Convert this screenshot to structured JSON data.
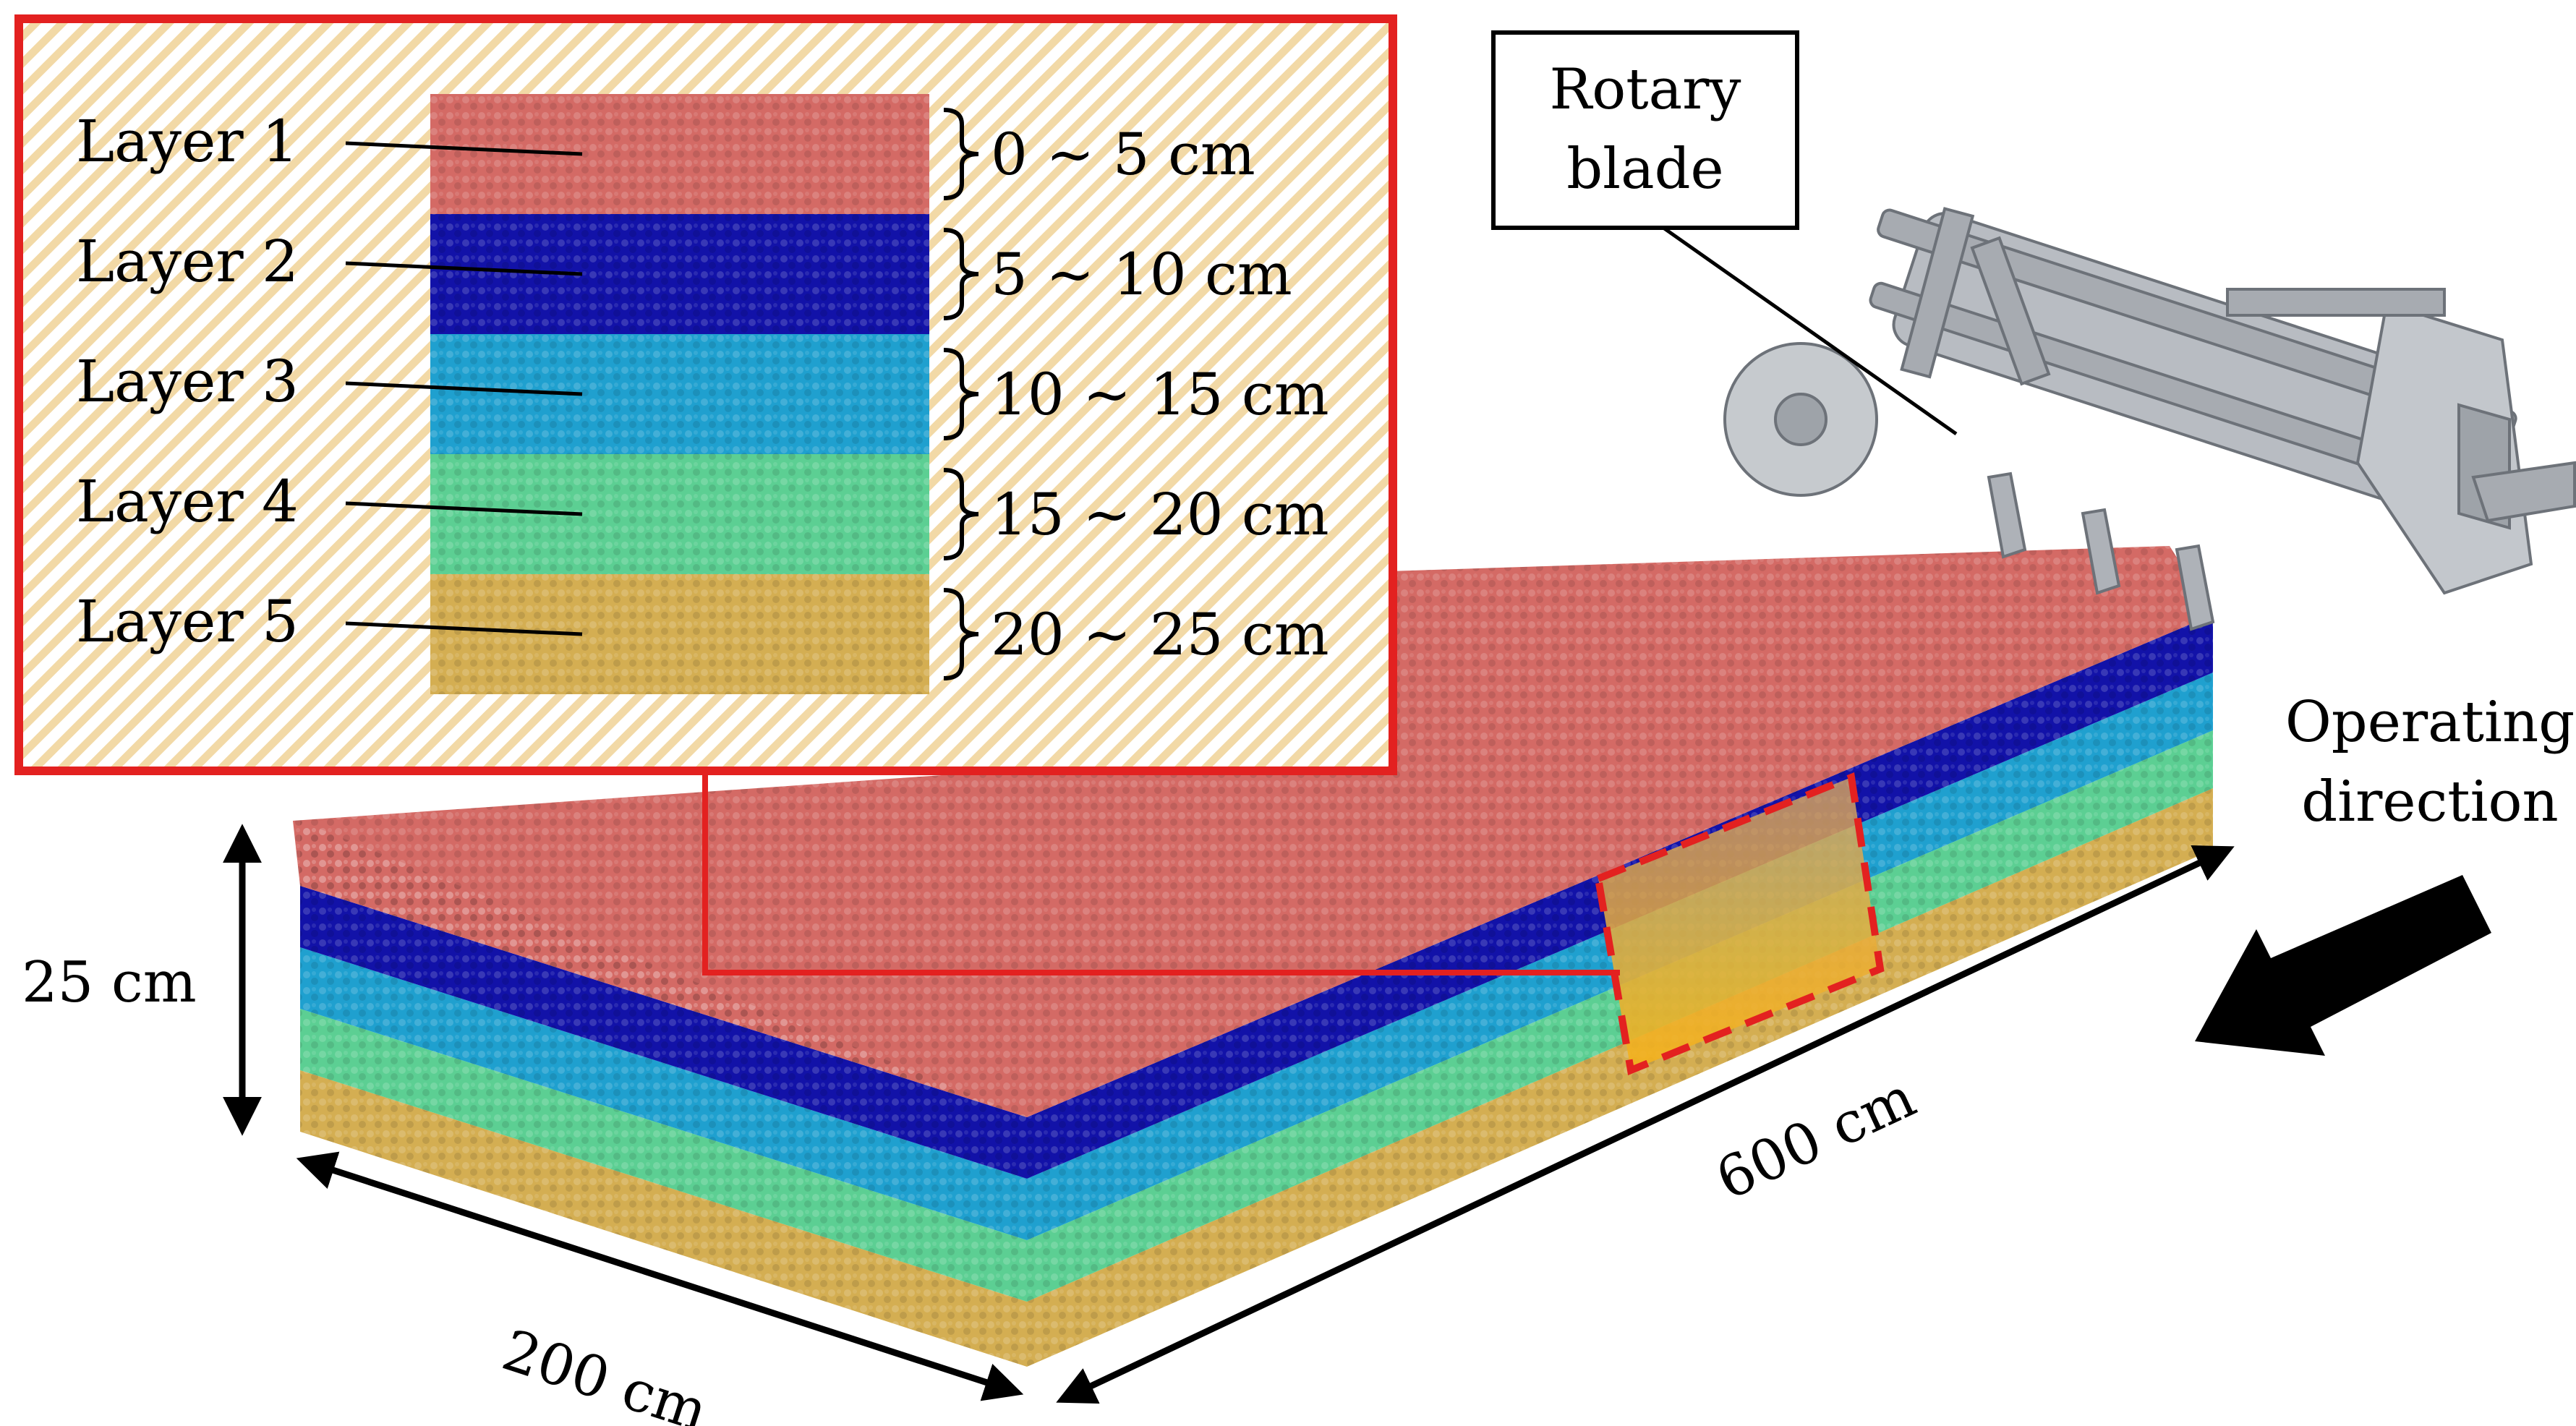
{
  "inset": {
    "layers": [
      {
        "name": "Layer 1",
        "depth": "0 ~ 5 cm",
        "color": "#d46a65"
      },
      {
        "name": "Layer 2",
        "depth": "5 ~ 10 cm",
        "color": "#1212a8"
      },
      {
        "name": "Layer 3",
        "depth": "10 ~ 15 cm",
        "color": "#1fa0cf"
      },
      {
        "name": "Layer 4",
        "depth": "15 ~ 20 cm",
        "color": "#5ccf93"
      },
      {
        "name": "Layer 5",
        "depth": "20 ~ 25 cm",
        "color": "#d4ae52"
      }
    ],
    "frame_color": "#e32120",
    "hatch_color": "#f2d9a6"
  },
  "machine": {
    "label_line1": "Rotary",
    "label_line2": "blade"
  },
  "dimensions": {
    "depth": "25 cm",
    "width": "200 cm",
    "length": "600 cm"
  },
  "direction": {
    "line1": "Operating",
    "line2": "direction"
  }
}
